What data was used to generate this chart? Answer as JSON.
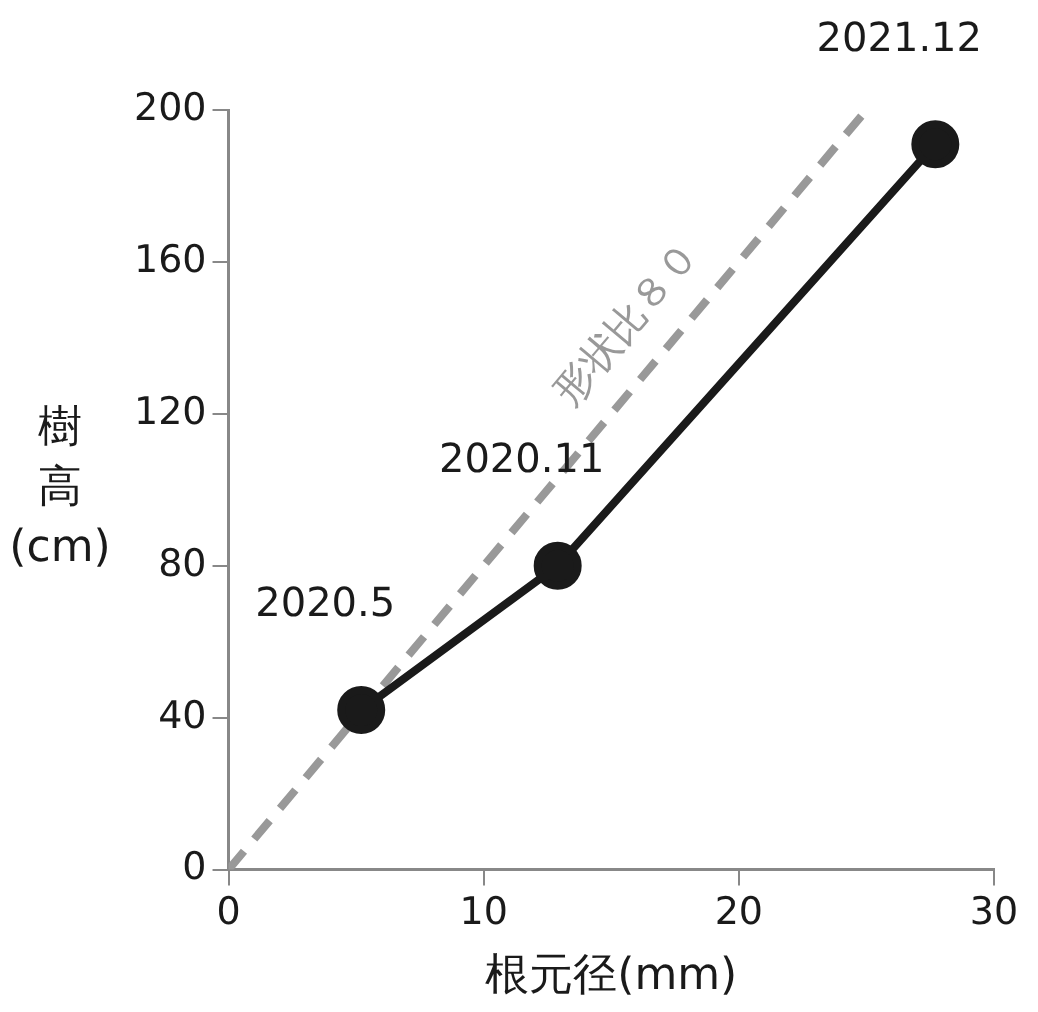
{
  "chart_data": {
    "type": "line",
    "xlabel": "根元径(mm)",
    "ylabel": "樹高(cm)",
    "xlim": [
      0,
      30
    ],
    "xticks": [
      0,
      10,
      20,
      30
    ],
    "ylim": [
      0,
      200
    ],
    "yticks": [
      0,
      40,
      80,
      120,
      160,
      200
    ],
    "grid": false,
    "legend": false,
    "marker": "circle",
    "series": [
      {
        "color": "#1a1a1a",
        "x": [
          5.2,
          12.9,
          27.7
        ],
        "values": [
          42,
          80,
          191
        ],
        "line_style": "solid"
      },
      {
        "type": "line",
        "color": "#999999",
        "x": [
          0,
          25
        ],
        "values": [
          0,
          200
        ],
        "line_style": "dashed",
        "marker": "none"
      }
    ],
    "annotations": [
      {
        "text": "2020.5",
        "x": 5.2,
        "y": 42
      },
      {
        "text": "2020.11",
        "x": 12.9,
        "y": 80
      },
      {
        "text": "2021.12",
        "x": 27.7,
        "y": 191
      },
      "形状比８０"
    ]
  }
}
